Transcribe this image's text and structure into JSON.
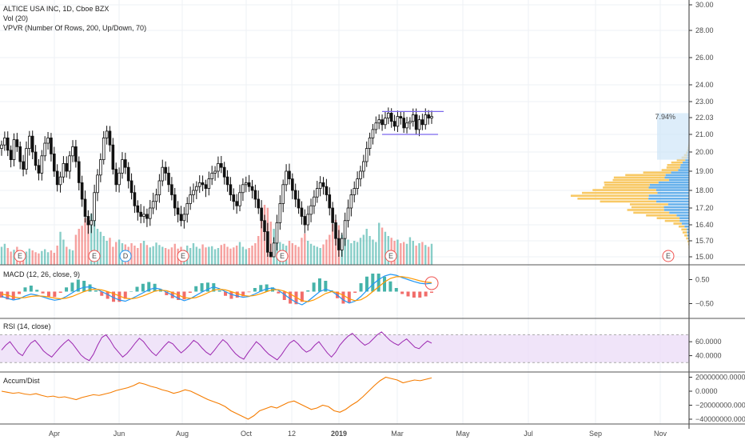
{
  "colors": {
    "up": "#26a69a",
    "down": "#ef5350",
    "candle": "#111111",
    "macd": "#2196f3",
    "signal": "#ff9800",
    "rsi": "#9c27b0",
    "rsi_band": "#e9d8f7",
    "adl": "#f57c00",
    "vpvr_up": "#4ea3e8",
    "vpvr_down": "#f7c04a",
    "range_box": "#7b68ee"
  },
  "chart_data": [
    {
      "type": "candlestick",
      "title": "ALTICE USA INC, 1D, Cboe BZX",
      "indicators_text": [
        "Vol (20)",
        "VPVR (Number Of Rows, 200, Up/Down, 70)"
      ],
      "y_ticks": [
        "30.00",
        "28.00",
        "26.00",
        "24.00",
        "23.00",
        "22.03",
        "21.00",
        "20.00",
        "19.00",
        "18.00",
        "17.20",
        "16.40",
        "15.70",
        "15.00"
      ],
      "y_tick_values": [
        30.0,
        28.0,
        26.0,
        24.0,
        23.0,
        22.03,
        21.0,
        20.0,
        19.0,
        18.0,
        17.2,
        16.4,
        15.7,
        15.0
      ],
      "x_ticks": [
        "Apr",
        "Jun",
        "Aug",
        "Oct",
        "12",
        "2019",
        "Mar",
        "May",
        "Jul",
        "Sep",
        "Nov"
      ],
      "price_change_label": "7.94%",
      "last_price": 22.03,
      "earnings_marker": "E",
      "dividend_marker": "D",
      "closes": [
        20.4,
        20.8,
        20.1,
        19.6,
        20.7,
        20.3,
        19.5,
        19.1,
        20.2,
        20.9,
        20.0,
        19.3,
        18.9,
        19.8,
        20.5,
        20.8,
        19.9,
        19.0,
        18.3,
        18.7,
        19.4,
        19.0,
        19.8,
        20.3,
        19.5,
        18.4,
        17.6,
        16.8,
        16.4,
        16.6,
        17.9,
        18.8,
        19.6,
        20.8,
        21.2,
        20.4,
        19.1,
        18.3,
        18.9,
        19.6,
        19.2,
        18.5,
        17.9,
        17.3,
        17.0,
        16.8,
        16.9,
        16.7,
        17.2,
        17.5,
        17.8,
        18.5,
        19.2,
        18.9,
        18.3,
        17.8,
        17.2,
        16.9,
        16.6,
        16.9,
        17.4,
        17.8,
        18.0,
        18.2,
        18.4,
        18.3,
        18.1,
        18.6,
        18.9,
        19.0,
        19.4,
        19.2,
        18.7,
        18.3,
        17.8,
        17.5,
        17.3,
        17.9,
        18.3,
        18.4,
        18.2,
        18.0,
        17.6,
        17.2,
        16.6,
        16.1,
        15.2,
        15.0,
        15.6,
        16.5,
        17.4,
        18.3,
        19.0,
        18.6,
        18.0,
        17.6,
        17.2,
        16.8,
        16.4,
        16.9,
        17.3,
        17.7,
        18.1,
        18.4,
        18.2,
        17.8,
        17.2,
        16.5,
        15.8,
        15.3,
        15.8,
        16.6,
        17.2,
        17.8,
        18.1,
        18.6,
        19.0,
        19.5,
        20.2,
        20.8,
        21.3,
        21.7,
        21.9,
        21.6,
        22.0,
        22.3,
        21.8,
        21.5,
        22.1,
        22.0,
        21.4,
        21.7,
        21.8,
        22.2,
        21.3,
        21.9,
        21.6,
        22.2,
        22.0,
        22.1
      ],
      "range_box": {
        "high": 22.4,
        "low": 21.0
      }
    },
    {
      "type": "bar",
      "title": "Vol (20)",
      "description": "daily volume bars colored by candle direction",
      "values": [
        0.3,
        0.35,
        0.28,
        0.22,
        0.25,
        0.3,
        0.18,
        0.2,
        0.22,
        0.27,
        0.24,
        0.21,
        0.19,
        0.23,
        0.26,
        0.21,
        0.24,
        0.2,
        0.32,
        0.55,
        0.42,
        0.3,
        0.26,
        0.24,
        0.5,
        0.6,
        0.65,
        0.78,
        0.72,
        0.85,
        0.92,
        0.6,
        0.55,
        0.48,
        0.4,
        0.45,
        0.3,
        0.38,
        0.42,
        0.36,
        0.34,
        0.3,
        0.36,
        0.32,
        0.28,
        0.36,
        0.4,
        0.33,
        0.29,
        0.31,
        0.37,
        0.33,
        0.3,
        0.28,
        0.26,
        0.29,
        0.35,
        0.27,
        0.3,
        0.25,
        0.32,
        0.28,
        0.36,
        0.3,
        0.27,
        0.34,
        0.29,
        0.3,
        0.31,
        0.26,
        0.28,
        0.33,
        0.35,
        0.3,
        0.27,
        0.29,
        0.32,
        0.38,
        0.3,
        0.26,
        0.28,
        0.32,
        0.36,
        0.48,
        0.82,
        1.0,
        0.95,
        0.72,
        0.6,
        0.45,
        0.38,
        0.35,
        0.32,
        0.4,
        0.36,
        0.33,
        0.3,
        0.45,
        0.52,
        0.4,
        0.35,
        0.32,
        0.3,
        0.28,
        0.34,
        0.42,
        0.5,
        0.68,
        0.75,
        0.66,
        0.5,
        0.44,
        0.42,
        0.36,
        0.4,
        0.38,
        0.45,
        0.5,
        0.6,
        0.48,
        0.42,
        0.38,
        0.7,
        0.62,
        0.55,
        0.48,
        0.45,
        0.4,
        0.42,
        0.36,
        0.38,
        0.35,
        0.46,
        0.4,
        0.32,
        0.36,
        0.38,
        0.33,
        0.3,
        0.35
      ]
    },
    {
      "type": "line",
      "title": "MACD (12, 26, close, 9)",
      "y_ticks": [
        "0.50",
        "−0.50"
      ],
      "y_tick_values": [
        0.5,
        -0.5
      ],
      "series": [
        {
          "name": "MACD",
          "values": [
            -0.2,
            -0.28,
            -0.35,
            -0.3,
            -0.18,
            -0.1,
            -0.15,
            -0.22,
            -0.3,
            -0.36,
            -0.32,
            -0.2,
            -0.05,
            0.1,
            0.18,
            0.2,
            0.12,
            0.0,
            -0.12,
            -0.25,
            -0.35,
            -0.4,
            -0.3,
            -0.18,
            -0.05,
            0.08,
            0.15,
            0.1,
            -0.02,
            -0.15,
            -0.28,
            -0.38,
            -0.3,
            -0.16,
            -0.02,
            0.1,
            0.2,
            0.12,
            0.0,
            -0.12,
            -0.18,
            -0.24,
            -0.2,
            -0.1,
            0.02,
            0.12,
            0.15,
            0.05,
            -0.12,
            -0.3,
            -0.45,
            -0.55,
            -0.4,
            -0.2,
            0.0,
            0.1,
            0.02,
            -0.15,
            -0.35,
            -0.48,
            -0.4,
            -0.2,
            0.05,
            0.3,
            0.5,
            0.65,
            0.72,
            0.68,
            0.58,
            0.5,
            0.42,
            0.35,
            0.32,
            0.35
          ]
        },
        {
          "name": "Signal",
          "values": [
            -0.1,
            -0.15,
            -0.22,
            -0.26,
            -0.25,
            -0.2,
            -0.18,
            -0.19,
            -0.22,
            -0.27,
            -0.3,
            -0.27,
            -0.2,
            -0.1,
            0.0,
            0.08,
            0.1,
            0.07,
            0.0,
            -0.08,
            -0.18,
            -0.28,
            -0.3,
            -0.26,
            -0.18,
            -0.08,
            0.02,
            0.06,
            0.04,
            -0.04,
            -0.14,
            -0.25,
            -0.28,
            -0.25,
            -0.16,
            -0.05,
            0.06,
            0.1,
            0.07,
            0.0,
            -0.08,
            -0.16,
            -0.19,
            -0.16,
            -0.09,
            0.0,
            0.08,
            0.08,
            0.02,
            -0.1,
            -0.24,
            -0.38,
            -0.42,
            -0.35,
            -0.22,
            -0.08,
            0.0,
            -0.04,
            -0.15,
            -0.3,
            -0.38,
            -0.34,
            -0.2,
            0.0,
            0.2,
            0.4,
            0.55,
            0.62,
            0.62,
            0.58,
            0.52,
            0.45,
            0.4,
            0.37
          ]
        }
      ]
    },
    {
      "type": "line",
      "title": "RSI (14, close)",
      "y_ticks": [
        "60.0000",
        "40.0000"
      ],
      "y_tick_values": [
        60,
        40
      ],
      "band": [
        30,
        70
      ],
      "series": [
        {
          "name": "RSI",
          "values": [
            48,
            55,
            60,
            52,
            44,
            40,
            50,
            58,
            62,
            55,
            47,
            42,
            38,
            45,
            52,
            58,
            63,
            57,
            49,
            41,
            36,
            33,
            42,
            55,
            66,
            70,
            62,
            52,
            45,
            38,
            43,
            50,
            58,
            65,
            60,
            52,
            45,
            40,
            47,
            54,
            60,
            57,
            50,
            44,
            49,
            55,
            62,
            58,
            51,
            45,
            41,
            48,
            56,
            63,
            58,
            50,
            43,
            38,
            35,
            44,
            52,
            60,
            55,
            48,
            42,
            38,
            34,
            41,
            50,
            58,
            62,
            57,
            50,
            45,
            48,
            55,
            60,
            52,
            44,
            38,
            45,
            55,
            62,
            68,
            72,
            66,
            60,
            55,
            58,
            64,
            70,
            74,
            68,
            62,
            58,
            55,
            60,
            64,
            58,
            52,
            50,
            56,
            61,
            58
          ]
        }
      ]
    },
    {
      "type": "line",
      "title": "Accum/Dist",
      "y_ticks": [
        "20000000.0000",
        "0.0000",
        "−20000000.0000",
        "−40000000.0000"
      ],
      "y_tick_values": [
        20000000,
        0,
        -20000000,
        -40000000
      ],
      "series": [
        {
          "name": "Accum/Dist",
          "values": [
            0,
            -1500000,
            -3000000,
            -2000000,
            -4000000,
            -5000000,
            -3500000,
            -6000000,
            -8000000,
            -7000000,
            -9000000,
            -8000000,
            -10000000,
            -12000000,
            -9000000,
            -7000000,
            -5000000,
            -6000000,
            -4000000,
            -2000000,
            1000000,
            3000000,
            5000000,
            8000000,
            12000000,
            10000000,
            7000000,
            5000000,
            2000000,
            0,
            -3000000,
            -1000000,
            2000000,
            0,
            -4000000,
            -8000000,
            -12000000,
            -15000000,
            -18000000,
            -22000000,
            -28000000,
            -32000000,
            -36000000,
            -40000000,
            -35000000,
            -28000000,
            -25000000,
            -22000000,
            -24000000,
            -20000000,
            -16000000,
            -14000000,
            -18000000,
            -22000000,
            -26000000,
            -24000000,
            -20000000,
            -22000000,
            -28000000,
            -30000000,
            -26000000,
            -20000000,
            -15000000,
            -8000000,
            0,
            8000000,
            15000000,
            20000000,
            18000000,
            16000000,
            12000000,
            14000000,
            16000000,
            15000000,
            17000000,
            19000000
          ]
        }
      ]
    }
  ]
}
